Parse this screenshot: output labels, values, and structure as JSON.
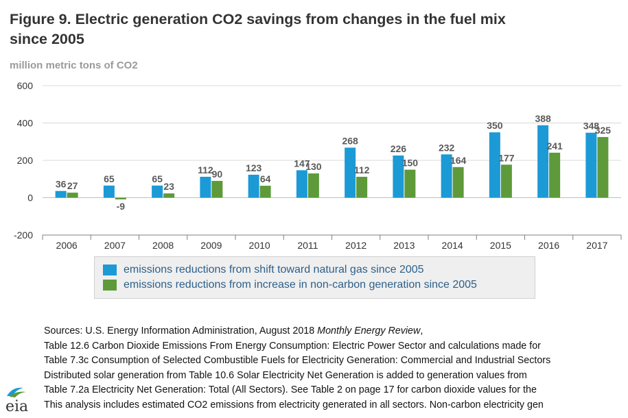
{
  "title_line1": "Figure 9. Electric generation CO2 savings from changes in the fuel mix",
  "title_line2": "since 2005",
  "unit_label": "million metric tons of CO2",
  "colors": {
    "gas": "#1b9ad6",
    "noncarbon": "#5e9a3a",
    "axis": "#666666",
    "grid": "#d9d9d9",
    "label": "#595959"
  },
  "chart_data": {
    "type": "bar",
    "categories": [
      "2006",
      "2007",
      "2008",
      "2009",
      "2010",
      "2011",
      "2012",
      "2013",
      "2014",
      "2015",
      "2016",
      "2017"
    ],
    "series": [
      {
        "name": "emissions reductions from shift toward natural gas since 2005",
        "values": [
          36,
          65,
          65,
          112,
          123,
          147,
          268,
          226,
          232,
          350,
          388,
          348
        ]
      },
      {
        "name": "emissions reductions from increase in non-carbon generation since 2005",
        "values": [
          27,
          -9,
          23,
          90,
          64,
          130,
          112,
          150,
          164,
          177,
          241,
          325
        ]
      }
    ],
    "yticks": [
      600,
      400,
      200,
      0,
      -200
    ],
    "ylim": [
      -200,
      600
    ],
    "grid": true,
    "legend_position": "bottom"
  },
  "sources": [
    [
      "Sources: U.S. Energy Information Administration, August 2018 ",
      "Monthly Energy Review",
      ","
    ],
    [
      "Table 12.6 Carbon Dioxide Emissions From Energy Consumption: Electric Power Sector and calculations made for",
      "",
      ""
    ],
    [
      "Table 7.3c Consumption of Selected Combustible Fuels for Electricity Generation: Commercial and Industrial Sectors",
      "",
      ""
    ],
    [
      "Distributed solar generation from Table 10.6 Solar Electricity Net Generation is added to generation values from",
      "",
      ""
    ],
    [
      "Table 7.2a Electricity Net Generation: Total (All Sectors). See Table 2 on page 17 for carbon dioxide values for the",
      "",
      ""
    ],
    [
      "This analysis includes estimated CO2 emissions from electricity generated in all sectors. Non-carbon electricity gen",
      "",
      ""
    ]
  ],
  "logo_text": "eia"
}
